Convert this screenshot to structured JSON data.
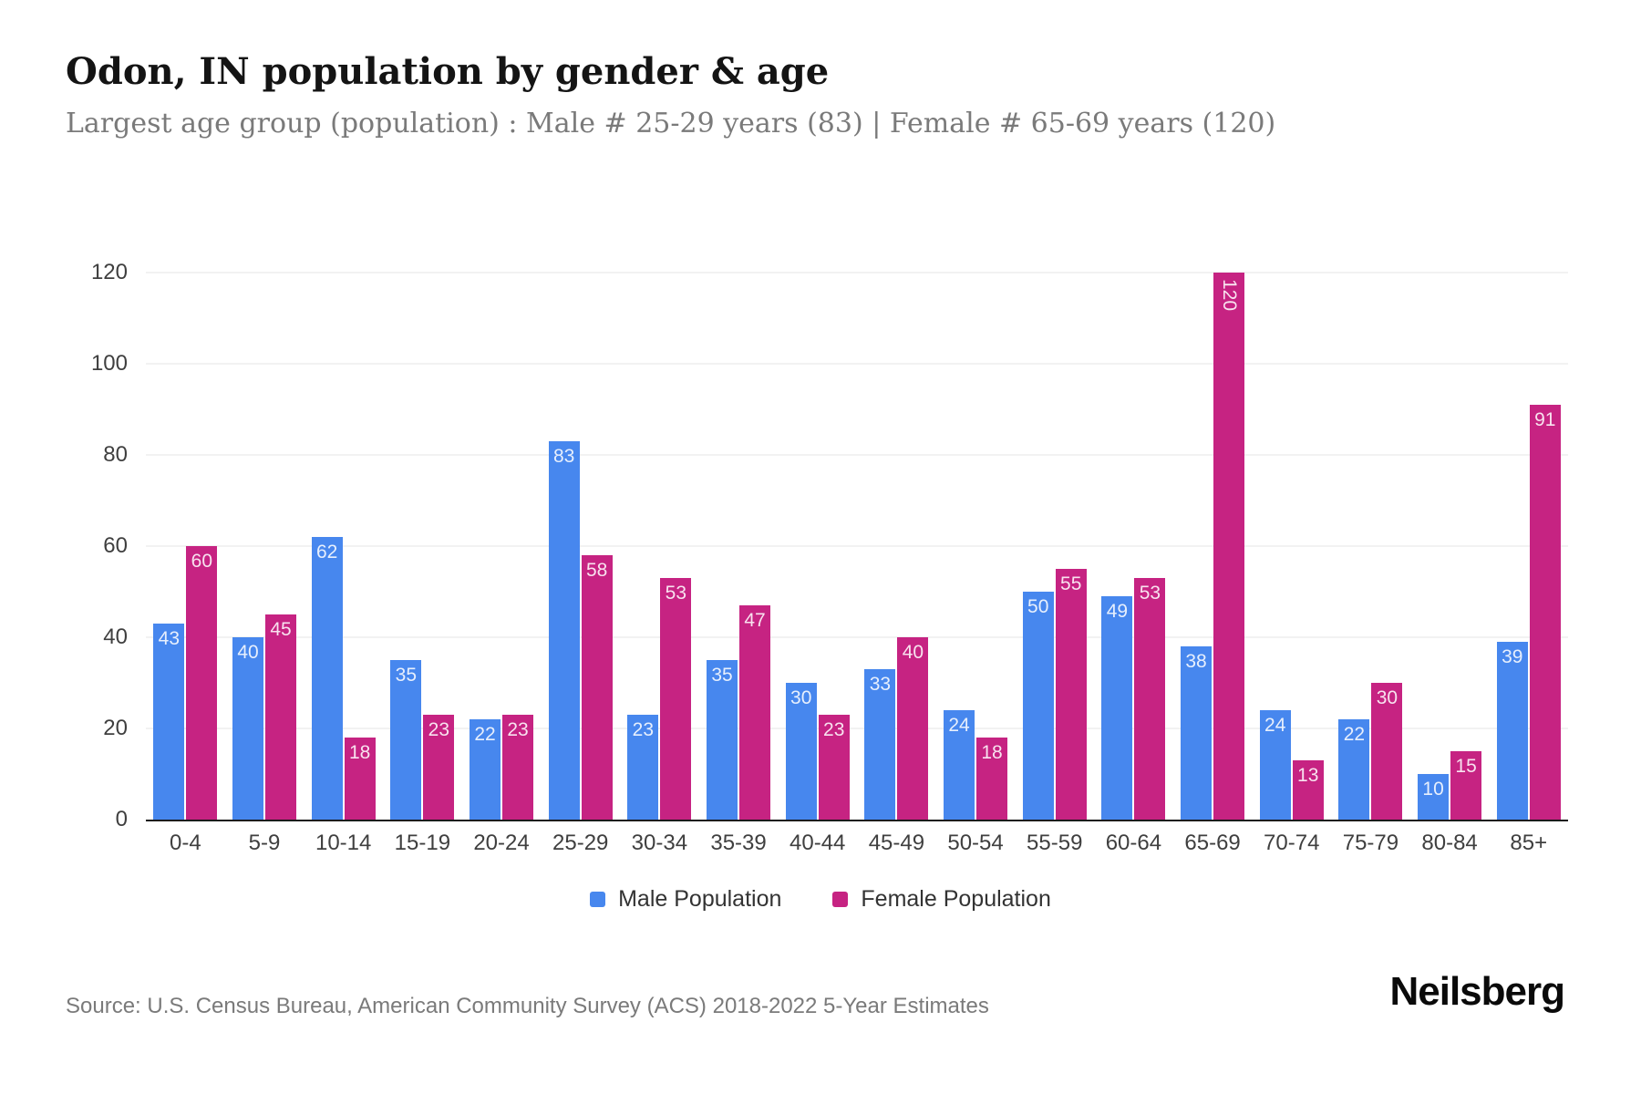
{
  "header": {
    "title": "Odon, IN population by gender & age",
    "subtitle": "Largest age group (population) : Male # 25-29 years (83) | Female # 65-69 years (120)"
  },
  "chart_data": {
    "type": "bar",
    "title": "Odon, IN population by gender & age",
    "categories": [
      "0-4",
      "5-9",
      "10-14",
      "15-19",
      "20-24",
      "25-29",
      "30-34",
      "35-39",
      "40-44",
      "45-49",
      "50-54",
      "55-59",
      "60-64",
      "65-69",
      "70-74",
      "75-79",
      "80-84",
      "85+"
    ],
    "series": [
      {
        "name": "Male Population",
        "color": "#4787ee",
        "values": [
          43,
          40,
          62,
          35,
          22,
          83,
          23,
          35,
          30,
          33,
          24,
          50,
          49,
          38,
          24,
          22,
          10,
          39
        ]
      },
      {
        "name": "Female Population",
        "color": "#c62382",
        "values": [
          60,
          45,
          18,
          23,
          23,
          58,
          53,
          47,
          23,
          40,
          18,
          55,
          53,
          120,
          13,
          30,
          15,
          91
        ]
      }
    ],
    "xlabel": "",
    "ylabel": "",
    "ylim": [
      0,
      120
    ],
    "yticks": [
      0,
      20,
      40,
      60,
      80,
      100,
      120
    ],
    "grid": "horizontal",
    "legend_position": "bottom",
    "value_labels": "inside-top"
  },
  "footer": {
    "source": "Source: U.S. Census Bureau, American Community Survey (ACS) 2018-2022 5-Year Estimates",
    "brand": "Neilsberg"
  }
}
